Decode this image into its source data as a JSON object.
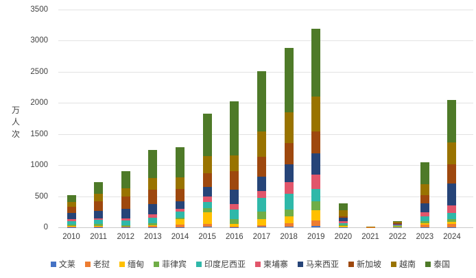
{
  "chart_data": {
    "type": "bar",
    "stacked": true,
    "title": "",
    "ylabel": "万人次",
    "xlabel": "",
    "ylim": [
      0,
      3500
    ],
    "ytick_interval": 500,
    "yticks": [
      0,
      500,
      1000,
      1500,
      2000,
      2500,
      3000,
      3500
    ],
    "grid": true,
    "legend_position": "bottom",
    "categories": [
      "2010",
      "2011",
      "2012",
      "2013",
      "2014",
      "2015",
      "2016",
      "2017",
      "2018",
      "2019",
      "2020",
      "2021",
      "2022",
      "2023",
      "2024"
    ],
    "series": [
      {
        "name": "文莱",
        "color": "#4472C4",
        "values": [
          4,
          4,
          3,
          3,
          3,
          10,
          4,
          8,
          13,
          25,
          2,
          0,
          1,
          4,
          5
        ]
      },
      {
        "name": "老挝",
        "color": "#ED7D31",
        "values": [
          10,
          10,
          6,
          15,
          45,
          46,
          9,
          26,
          58,
          90,
          3,
          1,
          4,
          36,
          55
        ]
      },
      {
        "name": "缅甸",
        "color": "#FFC000",
        "values": [
          8,
          10,
          6,
          10,
          85,
          186,
          40,
          102,
          110,
          157,
          22,
          1,
          5,
          29,
          25
        ]
      },
      {
        "name": "菲律宾",
        "color": "#70AD47",
        "values": [
          25,
          35,
          20,
          35,
          25,
          66,
          74,
          117,
          110,
          147,
          18,
          1,
          8,
          29,
          45
        ]
      },
      {
        "name": "印度尼西亚",
        "color": "#2FB8A9",
        "values": [
          50,
          60,
          72,
          90,
          96,
          102,
          157,
          220,
          250,
          201,
          22,
          1,
          15,
          74,
          104
        ]
      },
      {
        "name": "柬埔寨",
        "color": "#E1566B",
        "values": [
          35,
          25,
          38,
          55,
          48,
          87,
          88,
          110,
          183,
          227,
          37,
          0,
          8,
          74,
          121
        ]
      },
      {
        "name": "马来西亚",
        "color": "#264478",
        "values": [
          95,
          125,
          154,
          165,
          120,
          153,
          231,
          227,
          290,
          348,
          51,
          1,
          18,
          140,
          350
        ]
      },
      {
        "name": "新加坡",
        "color": "#9E480E",
        "values": [
          100,
          155,
          200,
          230,
          190,
          220,
          301,
          323,
          341,
          352,
          22,
          1,
          12,
          132,
          312
        ]
      },
      {
        "name": "越南",
        "color": "#997300",
        "values": [
          85,
          120,
          128,
          192,
          192,
          273,
          253,
          414,
          495,
          558,
          99,
          1,
          14,
          179,
          349
        ]
      },
      {
        "name": "泰国",
        "color": "#4E7A28",
        "values": [
          103,
          180,
          282,
          445,
          480,
          690,
          869,
          958,
          1030,
          1085,
          110,
          2,
          18,
          345,
          677
        ]
      }
    ],
    "totals": [
      515,
      724,
      909,
      1240,
      1284,
      1833,
      2026,
      2505,
      2880,
      3190,
      386,
      9,
      103,
      1042,
      2043
    ]
  }
}
